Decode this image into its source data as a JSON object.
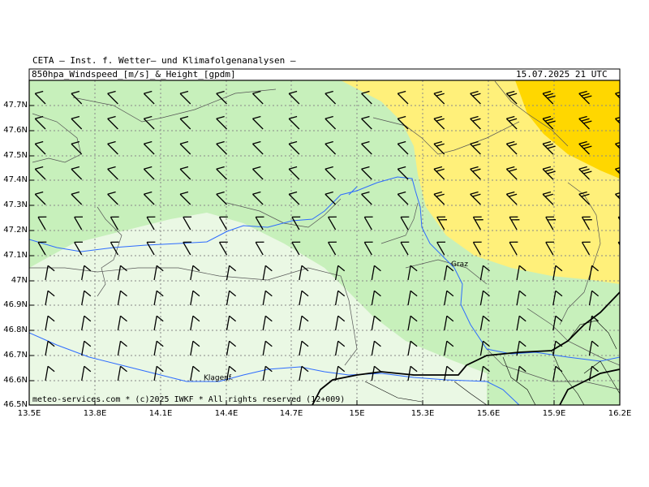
{
  "header": {
    "institute": "CETA — Inst. f. Wetter— und Klimafolgenanalysen —",
    "product": "850hpa_Windspeed_[m/s]_&_Height_[gpdm]",
    "valid_time": "15.07.2025 21 UTC"
  },
  "footer": {
    "credit": "meteo-services.com * (c)2025 IWKF * All rights reserved (12+009)"
  },
  "axes": {
    "lat_labels": [
      "47.7N",
      "47.6N",
      "47.5N",
      "47.4N",
      "47.3N",
      "47.2N",
      "47.1N",
      "47N",
      "46.9N",
      "46.8N",
      "46.7N",
      "46.6N",
      "46.5N"
    ],
    "lon_labels": [
      "13.5E",
      "13.8E",
      "14.1E",
      "14.4E",
      "14.7E",
      "15E",
      "15.3E",
      "15.6E",
      "15.9E",
      "16.2E"
    ]
  },
  "places": {
    "graz": "Graz",
    "klagenfurt": "Klagenf."
  },
  "colors": {
    "wind_low": "#eaf8e4",
    "wind_mid": "#c7f0bb",
    "wind_high_1": "#fff07a",
    "wind_high_2": "#ffd700",
    "river": "#2d6bff",
    "border": "#000000",
    "grid": "#888888"
  }
}
